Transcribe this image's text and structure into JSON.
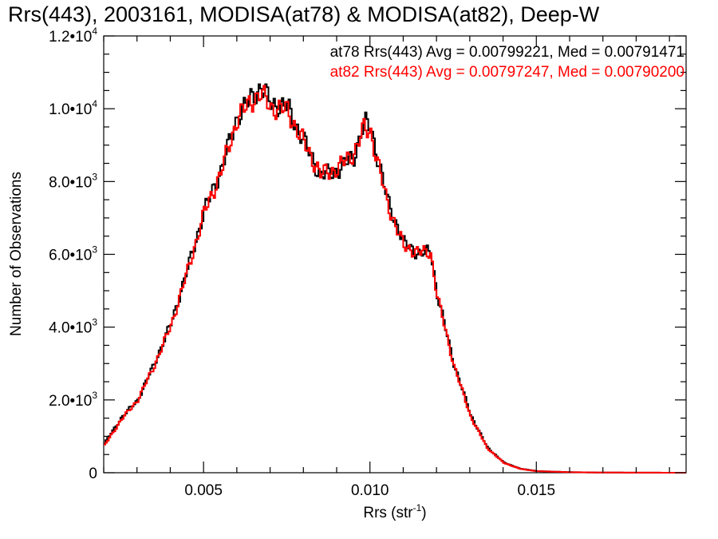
{
  "chart_data": {
    "type": "line",
    "step": true,
    "title": "Rrs(443), 2003161, MODISA(at78) & MODISA(at82), Deep-W",
    "xlabel_main": "Rrs (str",
    "xlabel_sup": "-1",
    "xlabel_close": ")",
    "ylabel": "Number of Observations",
    "xlim": [
      0.002,
      0.0195
    ],
    "ylim": [
      0,
      12000
    ],
    "grid": false,
    "legend_position": "top-right",
    "x_ticks": [
      {
        "value": 0.005,
        "label": "0.005"
      },
      {
        "value": 0.01,
        "label": "0.010"
      },
      {
        "value": 0.015,
        "label": "0.015"
      }
    ],
    "y_ticks": [
      {
        "value": 0,
        "label": "0",
        "exp": ""
      },
      {
        "value": 2000,
        "label": "2.0•10",
        "exp": "3"
      },
      {
        "value": 4000,
        "label": "4.0•10",
        "exp": "3"
      },
      {
        "value": 6000,
        "label": "6.0•10",
        "exp": "3"
      },
      {
        "value": 8000,
        "label": "8.0•10",
        "exp": "3"
      },
      {
        "value": 10000,
        "label": "1.0•10",
        "exp": "4"
      },
      {
        "value": 12000,
        "label": "1.2•10",
        "exp": "4"
      }
    ],
    "annotations": [
      {
        "text": "at78 Rrs(443) Avg = 0.00799221, Med = 0.00791471",
        "color": "#000000"
      },
      {
        "text": "at82 Rrs(443) Avg = 0.00797247, Med = 0.00790200",
        "color": "#ff0000"
      }
    ],
    "series": [
      {
        "color": "#000000",
        "x": [
          0.002,
          0.0025,
          0.003,
          0.0035,
          0.004,
          0.0045,
          0.005,
          0.0055,
          0.006,
          0.0065,
          0.0067,
          0.007,
          0.0075,
          0.008,
          0.0085,
          0.009,
          0.0095,
          0.0098,
          0.01,
          0.0105,
          0.011,
          0.0115,
          0.0118,
          0.012,
          0.0125,
          0.013,
          0.0135,
          0.014,
          0.0145,
          0.015,
          0.016,
          0.017,
          0.018,
          0.0195
        ],
        "y": [
          800,
          1500,
          2000,
          3000,
          4100,
          5600,
          7200,
          8300,
          9800,
          10400,
          10600,
          10150,
          10050,
          9100,
          8150,
          8300,
          8700,
          9600,
          9500,
          7500,
          6300,
          6000,
          6100,
          4900,
          3000,
          1600,
          700,
          280,
          110,
          45,
          15,
          5,
          2,
          0
        ]
      },
      {
        "color": "#ff0000",
        "x": [
          0.002,
          0.0025,
          0.003,
          0.0035,
          0.004,
          0.0045,
          0.005,
          0.0055,
          0.006,
          0.0065,
          0.0067,
          0.007,
          0.0075,
          0.008,
          0.0085,
          0.009,
          0.0095,
          0.0098,
          0.01,
          0.0105,
          0.011,
          0.0115,
          0.0118,
          0.012,
          0.0125,
          0.013,
          0.0135,
          0.014,
          0.0145,
          0.015,
          0.016,
          0.017,
          0.018,
          0.0195
        ],
        "y": [
          750,
          1450,
          2000,
          2950,
          4050,
          5550,
          7150,
          8250,
          9750,
          10300,
          10400,
          10050,
          9950,
          9050,
          8200,
          8350,
          8800,
          9450,
          9350,
          7400,
          6200,
          6050,
          6050,
          4850,
          2950,
          1550,
          680,
          270,
          105,
          42,
          14,
          5,
          2,
          0
        ]
      }
    ]
  }
}
